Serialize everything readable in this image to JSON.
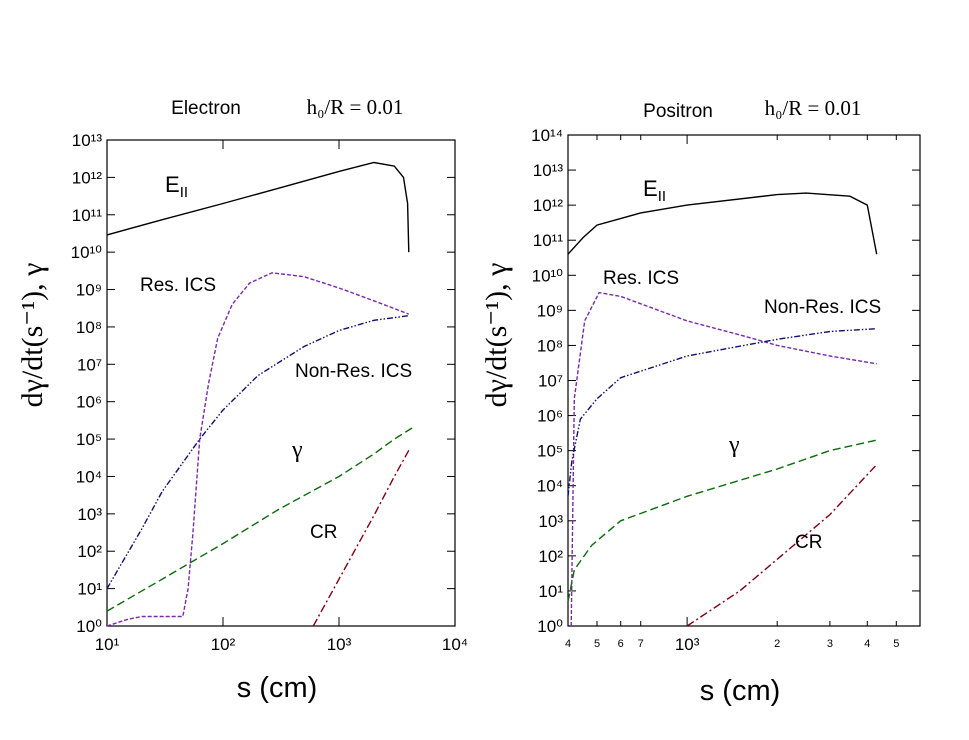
{
  "chart_data": [
    {
      "type": "line",
      "title": "Electron",
      "subtitle": "h₀/R = 0.01",
      "xlabel": "s (cm)",
      "ylabel": "dγ/dt(s⁻¹),  γ",
      "xscale": "log",
      "yscale": "log",
      "xlim": [
        10,
        10000
      ],
      "ylim": [
        1,
        10000000000000.0
      ],
      "xticks": [
        {
          "value": 10,
          "label": "10¹"
        },
        {
          "value": 100,
          "label": "10²"
        },
        {
          "value": 1000,
          "label": "10³"
        },
        {
          "value": 10000,
          "label": "10⁴"
        }
      ],
      "yticks": [
        {
          "value": 1,
          "label": "10⁰"
        },
        {
          "value": 10,
          "label": "10¹"
        },
        {
          "value": 100,
          "label": "10²"
        },
        {
          "value": 1000,
          "label": "10³"
        },
        {
          "value": 10000,
          "label": "10⁴"
        },
        {
          "value": 100000,
          "label": "10⁵"
        },
        {
          "value": 1000000,
          "label": "10⁶"
        },
        {
          "value": 10000000,
          "label": "10⁷"
        },
        {
          "value": 100000000,
          "label": "10⁸"
        },
        {
          "value": 1000000000,
          "label": "10⁹"
        },
        {
          "value": 10000000000,
          "label": "10¹⁰"
        },
        {
          "value": 100000000000,
          "label": "10¹¹"
        },
        {
          "value": 1000000000000,
          "label": "10¹²"
        },
        {
          "value": 10000000000000,
          "label": "10¹³"
        }
      ],
      "series": [
        {
          "name": "EII",
          "color": "#000000",
          "linestyle": "solid",
          "x": [
            10,
            30,
            100,
            300,
            1000,
            2000,
            3000,
            3600,
            3900,
            4000
          ],
          "values": [
            29000000000,
            74000000000,
            200000000000,
            510000000000,
            1450000000000,
            2500000000000,
            2000000000000,
            1000000000000,
            200000000000,
            10000000000
          ]
        },
        {
          "name": "Res. ICS",
          "color": "#7a2aa8",
          "linestyle": "dashed",
          "x": [
            10,
            15,
            20,
            45,
            50,
            55,
            63,
            75,
            90,
            120,
            170,
            265,
            500,
            1000,
            2000,
            4000
          ],
          "values": [
            1,
            1.5,
            1.8,
            1.8,
            10,
            300,
            100000,
            3000000,
            50000000,
            400000000,
            1500000000,
            2800000000,
            2200000000,
            1100000000,
            500000000,
            220000000
          ]
        },
        {
          "name": "Non-Res. ICS",
          "color": "#101070",
          "linestyle": "dashdotdot",
          "x": [
            10,
            20,
            30,
            63,
            100,
            200,
            500,
            1000,
            2000,
            4000
          ],
          "values": [
            10,
            400,
            4000,
            100000,
            600000,
            5000000,
            30000000,
            80000000,
            150000000,
            200000000
          ]
        },
        {
          "name": "γ",
          "color": "#0b6a0b",
          "linestyle": "longdash",
          "x": [
            10,
            30,
            100,
            300,
            1000,
            2000,
            3000,
            4500
          ],
          "values": [
            2.5,
            18,
            160,
            1300,
            10000,
            40000,
            100000,
            220000
          ]
        },
        {
          "name": "CR",
          "color": "#800010",
          "linestyle": "dashdot",
          "x": [
            600,
            1000,
            2000,
            3000,
            4000
          ],
          "values": [
            1,
            18,
            900,
            10000,
            50000
          ]
        }
      ]
    },
    {
      "type": "line",
      "title": "Positron",
      "subtitle": "h₀/R = 0.01",
      "xlabel": "s (cm)",
      "ylabel": "dγ/dt(s⁻¹),  γ",
      "xscale": "log",
      "yscale": "log",
      "xlim": [
        400,
        6000
      ],
      "ylim": [
        1,
        100000000000000.0
      ],
      "xticks": [
        {
          "value": 400,
          "label": "4"
        },
        {
          "value": 500,
          "label": "5"
        },
        {
          "value": 600,
          "label": "6"
        },
        {
          "value": 700,
          "label": "7"
        },
        {
          "value": 1000,
          "label": "10³"
        },
        {
          "value": 2000,
          "label": "2"
        },
        {
          "value": 3000,
          "label": "3"
        },
        {
          "value": 4000,
          "label": "4"
        },
        {
          "value": 5000,
          "label": "5"
        }
      ],
      "yticks": [
        {
          "value": 1,
          "label": "10⁰"
        },
        {
          "value": 10,
          "label": "10¹"
        },
        {
          "value": 100,
          "label": "10²"
        },
        {
          "value": 1000,
          "label": "10³"
        },
        {
          "value": 10000,
          "label": "10⁴"
        },
        {
          "value": 100000,
          "label": "10⁵"
        },
        {
          "value": 1000000,
          "label": "10⁶"
        },
        {
          "value": 10000000,
          "label": "10⁷"
        },
        {
          "value": 100000000,
          "label": "10⁸"
        },
        {
          "value": 1000000000,
          "label": "10⁹"
        },
        {
          "value": 10000000000,
          "label": "10¹⁰"
        },
        {
          "value": 100000000000,
          "label": "10¹¹"
        },
        {
          "value": 1000000000000,
          "label": "10¹²"
        },
        {
          "value": 10000000000000,
          "label": "10¹³"
        },
        {
          "value": 100000000000000,
          "label": "10¹⁴"
        }
      ],
      "series": [
        {
          "name": "EII",
          "color": "#000000",
          "linestyle": "solid",
          "x": [
            400,
            450,
            500,
            700,
            1000,
            2000,
            2500,
            3500,
            4000,
            4300
          ],
          "values": [
            40000000000,
            120000000000,
            270000000000,
            600000000000,
            1000000000000,
            2000000000000,
            2200000000000,
            1800000000000,
            1000000000000,
            40000000000
          ]
        },
        {
          "name": "Res. ICS",
          "color": "#7a2aa8",
          "linestyle": "dashed",
          "x": [
            410,
            420,
            455,
            508,
            600,
            1000,
            1500,
            2000,
            3000,
            4300
          ],
          "values": [
            1,
            3000000,
            500000000,
            3200000000,
            2500000000,
            500000000,
            200000000,
            100000000,
            50000000,
            30000000
          ]
        },
        {
          "name": "Non-Res. ICS",
          "color": "#101070",
          "linestyle": "dashdotdot",
          "x": [
            400,
            412,
            440,
            500,
            600,
            1000,
            2000,
            3000,
            4300
          ],
          "values": [
            5000,
            50000,
            800000,
            3000000,
            12000000,
            50000000,
            150000000,
            250000000,
            300000000
          ]
        },
        {
          "name": "γ",
          "color": "#0b6a0b",
          "linestyle": "longdash",
          "x": [
            400,
            420,
            480,
            600,
            1000,
            2000,
            3000,
            4300
          ],
          "values": [
            5,
            40,
            200,
            1000,
            5000,
            30000,
            100000,
            200000
          ]
        },
        {
          "name": "CR",
          "color": "#800010",
          "linestyle": "dashdot",
          "x": [
            1000,
            1500,
            2000,
            3000,
            4300
          ],
          "values": [
            1,
            10,
            80,
            1500,
            40000
          ]
        }
      ]
    }
  ]
}
